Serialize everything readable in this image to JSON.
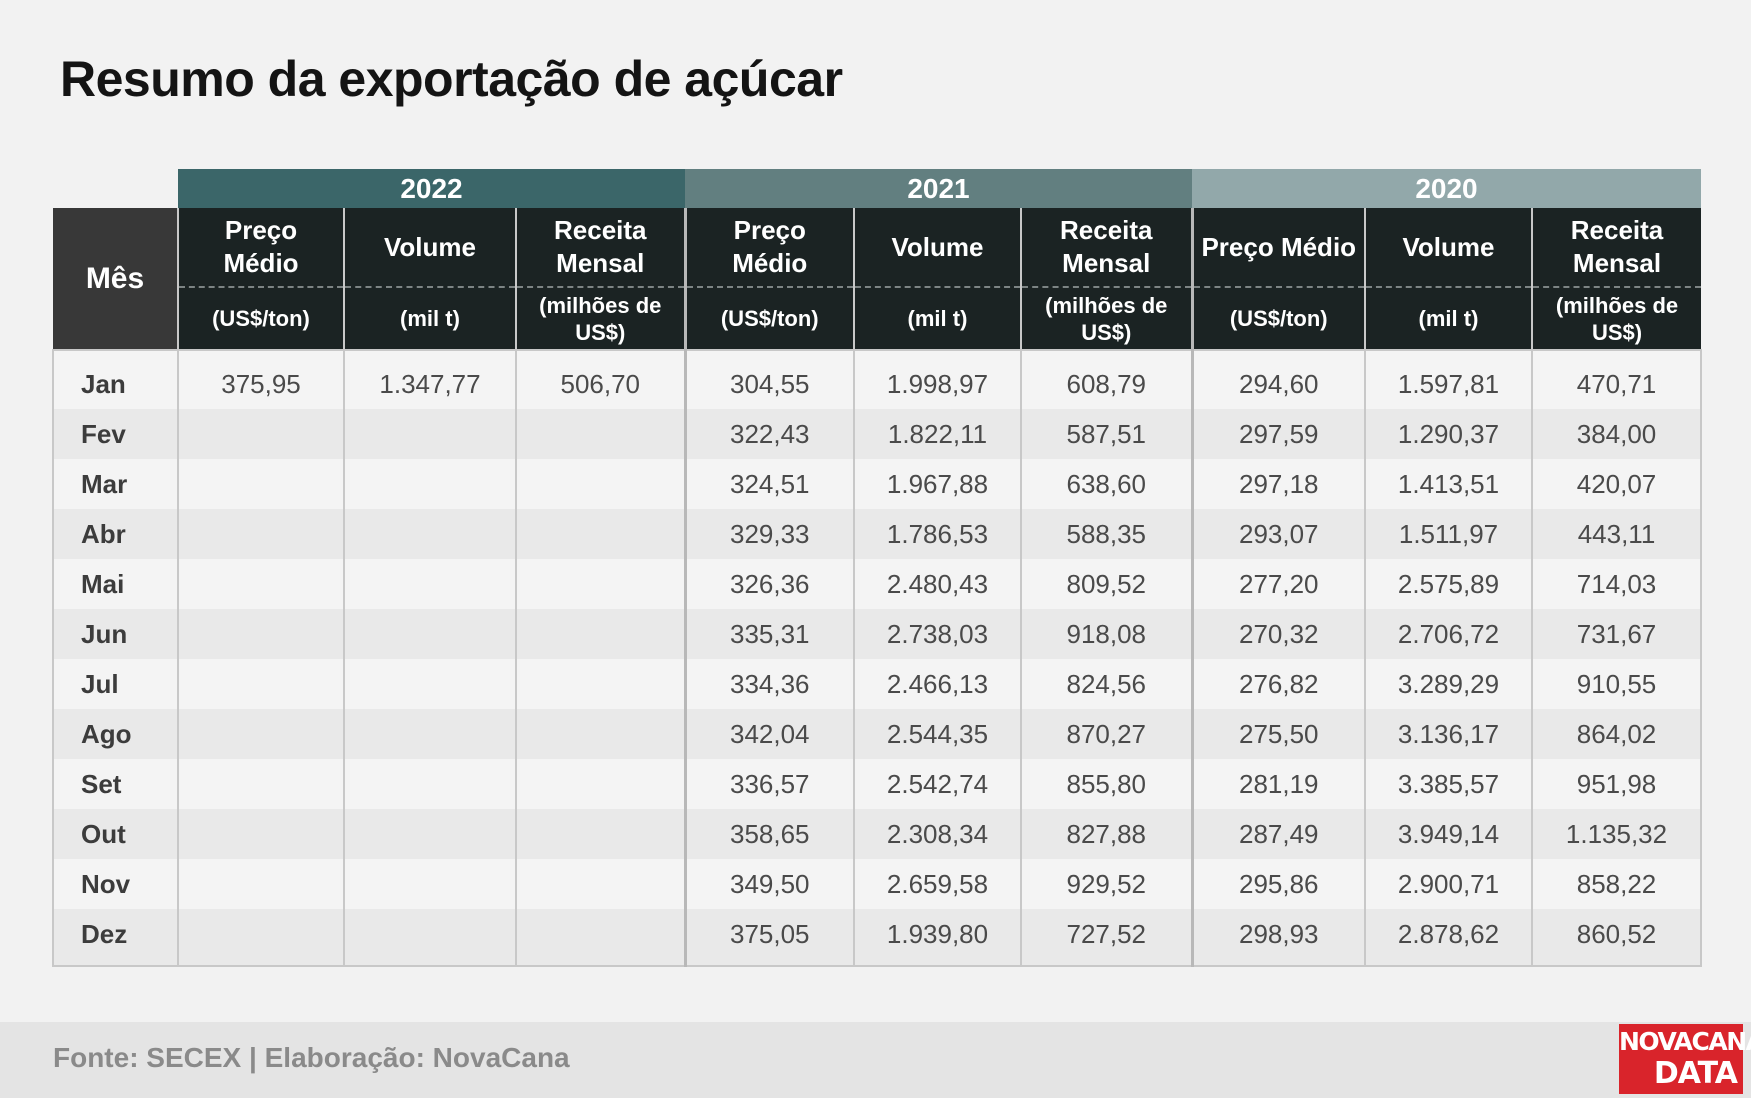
{
  "title": "Resumo da exportação de açúcar",
  "footer": {
    "source": "Fonte: SECEX | Elaboração: NovaCana"
  },
  "logo": {
    "line1": "NOVACANA",
    "line2": "DATA"
  },
  "colors": {
    "y2022": "#3b6669",
    "y2021": "#627f80",
    "y2020": "#92a8aa",
    "header_dark": "#1b2323",
    "logo_red": "#d9242b"
  },
  "chart_data": {
    "type": "table",
    "title": "Resumo da exportação de açúcar",
    "row_header": "Mês",
    "years": [
      "2022",
      "2021",
      "2020"
    ],
    "columns": [
      {
        "name": "Preço Médio",
        "unit": "(US$/ton)"
      },
      {
        "name": "Volume",
        "unit": "(mil t)"
      },
      {
        "name": "Receita Mensal",
        "unit": "(milhões de US$)"
      }
    ],
    "rows": [
      {
        "month": "Jan",
        "values": [
          "375,95",
          "1.347,77",
          "506,70",
          "304,55",
          "1.998,97",
          "608,79",
          "294,60",
          "1.597,81",
          "470,71"
        ]
      },
      {
        "month": "Fev",
        "values": [
          "",
          "",
          "",
          "322,43",
          "1.822,11",
          "587,51",
          "297,59",
          "1.290,37",
          "384,00"
        ]
      },
      {
        "month": "Mar",
        "values": [
          "",
          "",
          "",
          "324,51",
          "1.967,88",
          "638,60",
          "297,18",
          "1.413,51",
          "420,07"
        ]
      },
      {
        "month": "Abr",
        "values": [
          "",
          "",
          "",
          "329,33",
          "1.786,53",
          "588,35",
          "293,07",
          "1.511,97",
          "443,11"
        ]
      },
      {
        "month": "Mai",
        "values": [
          "",
          "",
          "",
          "326,36",
          "2.480,43",
          "809,52",
          "277,20",
          "2.575,89",
          "714,03"
        ]
      },
      {
        "month": "Jun",
        "values": [
          "",
          "",
          "",
          "335,31",
          "2.738,03",
          "918,08",
          "270,32",
          "2.706,72",
          "731,67"
        ]
      },
      {
        "month": "Jul",
        "values": [
          "",
          "",
          "",
          "334,36",
          "2.466,13",
          "824,56",
          "276,82",
          "3.289,29",
          "910,55"
        ]
      },
      {
        "month": "Ago",
        "values": [
          "",
          "",
          "",
          "342,04",
          "2.544,35",
          "870,27",
          "275,50",
          "3.136,17",
          "864,02"
        ]
      },
      {
        "month": "Set",
        "values": [
          "",
          "",
          "",
          "336,57",
          "2.542,74",
          "855,80",
          "281,19",
          "3.385,57",
          "951,98"
        ]
      },
      {
        "month": "Out",
        "values": [
          "",
          "",
          "",
          "358,65",
          "2.308,34",
          "827,88",
          "287,49",
          "3.949,14",
          "1.135,32"
        ]
      },
      {
        "month": "Nov",
        "values": [
          "",
          "",
          "",
          "349,50",
          "2.659,58",
          "929,52",
          "295,86",
          "2.900,71",
          "858,22"
        ]
      },
      {
        "month": "Dez",
        "values": [
          "",
          "",
          "",
          "375,05",
          "1.939,80",
          "727,52",
          "298,93",
          "2.878,62",
          "860,52"
        ]
      }
    ]
  }
}
